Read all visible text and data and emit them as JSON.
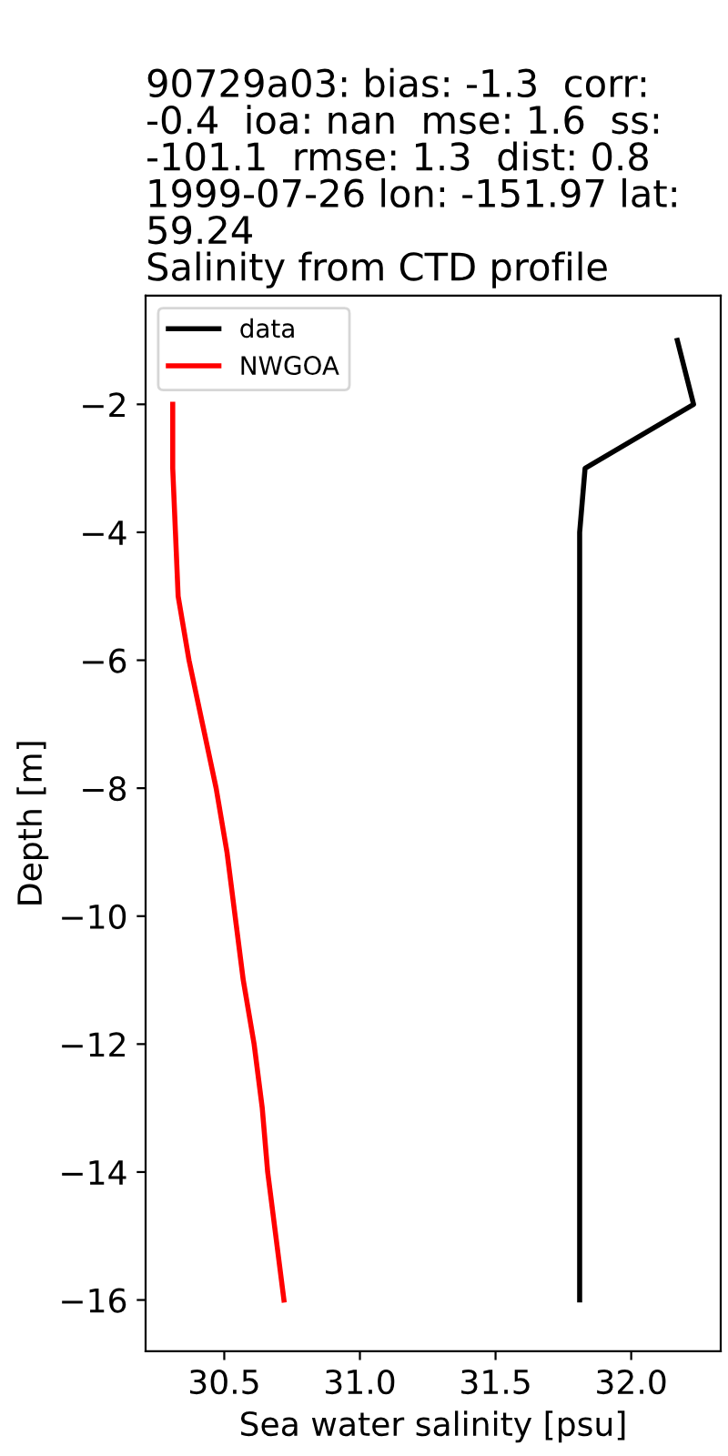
{
  "chart_data": {
    "type": "line",
    "title": "90729a03: bias: -1.3  corr:\n-0.4  ioa: nan  mse: 1.6  ss:\n-101.1  rmse: 1.3  dist: 0.8\n1999-07-26 lon: -151.97 lat:\n59.24\nSalinity from CTD profile",
    "xlabel": "Sea water salinity [psu]",
    "ylabel": "Depth [m]",
    "series": [
      {
        "name": "data",
        "color": "#000000",
        "x": [
          32.17,
          32.23,
          31.83,
          31.81,
          31.81,
          31.81,
          31.81,
          31.81,
          31.81,
          31.81,
          31.81,
          31.81,
          31.81,
          31.81,
          31.81,
          31.81
        ],
        "values": [
          -1,
          -2,
          -3,
          -4,
          -5,
          -6,
          -7,
          -8,
          -9,
          -10,
          -11,
          -12,
          -13,
          -14,
          -15,
          -16
        ]
      },
      {
        "name": "NWGOA",
        "color": "#ff0000",
        "x": [
          30.31,
          30.31,
          30.32,
          30.33,
          30.37,
          30.42,
          30.47,
          30.51,
          30.54,
          30.57,
          30.61,
          30.64,
          30.66,
          30.69,
          30.72
        ],
        "values": [
          -2,
          -3,
          -4,
          -5,
          -6,
          -7,
          -8,
          -9,
          -10,
          -11,
          -12,
          -13,
          -14,
          -15,
          -16
        ]
      }
    ],
    "xlim": [
      30.21,
      32.33
    ],
    "ylim": [
      -16.8,
      -0.3
    ],
    "xticks": [
      30.5,
      {
        "value": 31,
        "label": "31.0"
      },
      31.5,
      {
        "value": 32,
        "label": "32.0"
      }
    ],
    "yticks": [
      -16,
      -14,
      -12,
      -10,
      -8,
      -6,
      -4,
      -2
    ],
    "legend": "top left",
    "grid": false,
    "line_style": "solid"
  }
}
